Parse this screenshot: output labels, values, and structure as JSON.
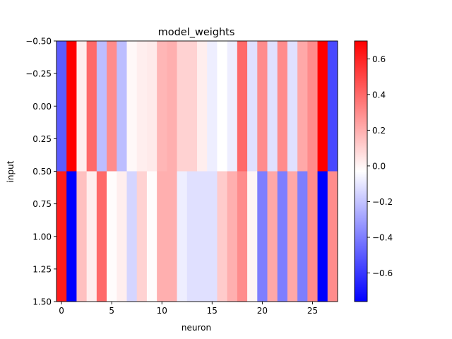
{
  "chart_data": {
    "type": "heatmap",
    "title": "model_weights",
    "xlabel": "neuron",
    "ylabel": "input",
    "rows": 2,
    "cols": 28,
    "xlim": [
      -0.5,
      27.5
    ],
    "ylim": [
      1.5,
      -0.5
    ],
    "x_ticks": [
      0,
      5,
      10,
      15,
      20,
      25
    ],
    "y_ticks": [
      -0.5,
      -0.25,
      0.0,
      0.25,
      0.5,
      0.75,
      1.0,
      1.25,
      1.5
    ],
    "y_tick_labels": [
      "−0.50",
      "−0.25",
      "0.00",
      "0.25",
      "0.50",
      "0.75",
      "1.00",
      "1.25",
      "1.50"
    ],
    "colormap": "bwr",
    "vmin": -0.76,
    "vmax": 0.7,
    "colorbar_ticks": [
      0.6,
      0.4,
      0.2,
      0.0,
      -0.2,
      -0.4,
      -0.6
    ],
    "colorbar_tick_labels": [
      "0.6",
      "0.4",
      "0.2",
      "0.0",
      "−0.2",
      "−0.4",
      "−0.6"
    ],
    "values": [
      [
        -0.5,
        0.7,
        0.02,
        0.4,
        -0.22,
        0.3,
        -0.22,
        -0.01,
        0.02,
        0.03,
        0.18,
        0.2,
        0.1,
        0.1,
        0.02,
        -0.08,
        -0.03,
        -0.08,
        0.4,
        -0.12,
        0.3,
        -0.12,
        0.3,
        -0.12,
        0.22,
        0.3,
        0.7,
        -0.55
      ],
      [
        0.62,
        -0.76,
        0.15,
        0.02,
        0.4,
        -0.02,
        0.02,
        -0.15,
        0.1,
        -0.02,
        0.2,
        0.2,
        -0.08,
        -0.12,
        -0.12,
        -0.12,
        0.12,
        0.2,
        0.3,
        0.0,
        -0.4,
        0.22,
        -0.4,
        0.22,
        -0.4,
        0.3,
        -0.76,
        0.3
      ]
    ]
  }
}
